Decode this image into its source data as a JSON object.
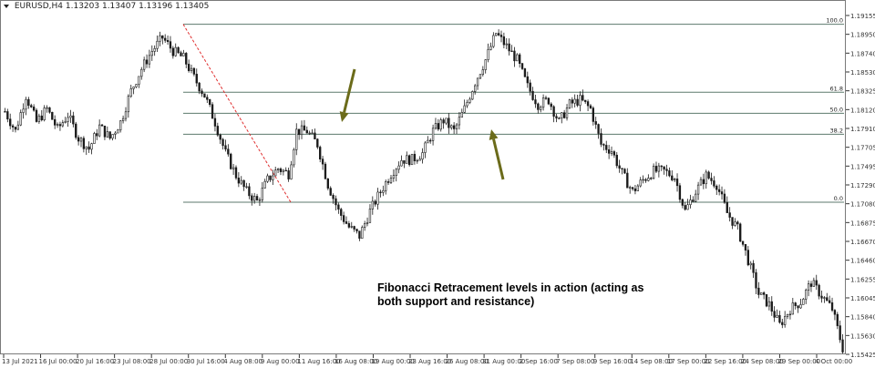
{
  "chart_data": {
    "type": "candlestick",
    "symbol": "EURUSD,H4",
    "ohlc_header": [
      "1.13203",
      "1.13407",
      "1.13196",
      "1.13405"
    ],
    "y_ticks": [
      "1.19155",
      "1.18950",
      "1.18740",
      "1.18530",
      "1.18325",
      "1.18120",
      "1.17910",
      "1.17705",
      "1.17495",
      "1.17290",
      "1.17080",
      "1.16875",
      "1.16670",
      "1.16460",
      "1.16255",
      "1.16045",
      "1.15840",
      "1.15630",
      "1.15425"
    ],
    "ylim": [
      1.1538,
      1.1925
    ],
    "x_ticks": [
      "13 Jul 2021",
      "16 Jul 00:00",
      "20 Jul 16:00",
      "23 Jul 08:00",
      "28 Jul 00:00",
      "30 Jul 16:00",
      "4 Aug 08:00",
      "9 Aug 00:00",
      "11 Aug 16:00",
      "16 Aug 08:00",
      "19 Aug 00:00",
      "23 Aug 16:00",
      "26 Aug 08:00",
      "31 Aug 00:00",
      "2 Sep 16:00",
      "7 Sep 08:00",
      "9 Sep 16:00",
      "14 Sep 08:00",
      "17 Sep 00:00",
      "22 Sep 16:00",
      "24 Sep 08:00",
      "29 Sep 00:00",
      "4 Oct 00:00"
    ],
    "fibonacci": {
      "swing_high": 1.191,
      "swing_low": 1.171,
      "levels": [
        {
          "label": "100.0",
          "price": 1.191
        },
        {
          "label": "61.8",
          "price": 1.18336
        },
        {
          "label": "50.0",
          "price": 1.181
        },
        {
          "label": "38.2",
          "price": 1.17864
        },
        {
          "label": "0.0",
          "price": 1.171
        }
      ]
    },
    "close_path": [
      [
        0,
        1.1812
      ],
      [
        4,
        1.179
      ],
      [
        8,
        1.183
      ],
      [
        12,
        1.18
      ],
      [
        16,
        1.1815
      ],
      [
        20,
        1.1792
      ],
      [
        24,
        1.1808
      ],
      [
        28,
        1.1782
      ],
      [
        32,
        1.177
      ],
      [
        36,
        1.1795
      ],
      [
        40,
        1.1782
      ],
      [
        44,
        1.18
      ],
      [
        48,
        1.1835
      ],
      [
        52,
        1.186
      ],
      [
        56,
        1.188
      ],
      [
        60,
        1.1895
      ],
      [
        64,
        1.188
      ],
      [
        68,
        1.1872
      ],
      [
        72,
        1.185
      ],
      [
        76,
        1.183
      ],
      [
        80,
        1.18
      ],
      [
        84,
        1.1765
      ],
      [
        88,
        1.174
      ],
      [
        92,
        1.1722
      ],
      [
        96,
        1.1711
      ],
      [
        100,
        1.1735
      ],
      [
        104,
        1.1748
      ],
      [
        108,
        1.1742
      ],
      [
        111,
        1.179
      ],
      [
        115,
        1.179
      ],
      [
        119,
        1.1775
      ],
      [
        123,
        1.173
      ],
      [
        127,
        1.17
      ],
      [
        131,
        1.1682
      ],
      [
        135,
        1.1672
      ],
      [
        139,
        1.17
      ],
      [
        143,
        1.1722
      ],
      [
        147,
        1.1742
      ],
      [
        151,
        1.1758
      ],
      [
        155,
        1.1758
      ],
      [
        159,
        1.1765
      ],
      [
        163,
        1.179
      ],
      [
        167,
        1.1802
      ],
      [
        171,
        1.179
      ],
      [
        175,
        1.1815
      ],
      [
        179,
        1.1845
      ],
      [
        183,
        1.187
      ],
      [
        187,
        1.19
      ],
      [
        191,
        1.1885
      ],
      [
        195,
        1.187
      ],
      [
        199,
        1.184
      ],
      [
        203,
        1.182
      ],
      [
        207,
        1.1825
      ],
      [
        211,
        1.18
      ],
      [
        215,
        1.182
      ],
      [
        219,
        1.1825
      ],
      [
        223,
        1.1815
      ],
      [
        227,
        1.1775
      ],
      [
        231,
        1.1768
      ],
      [
        235,
        1.1742
      ],
      [
        239,
        1.1722
      ],
      [
        243,
        1.1735
      ],
      [
        247,
        1.1745
      ],
      [
        251,
        1.1745
      ],
      [
        255,
        1.1738
      ],
      [
        259,
        1.17
      ],
      [
        263,
        1.1722
      ],
      [
        267,
        1.174
      ],
      [
        271,
        1.173
      ],
      [
        275,
        1.1698
      ],
      [
        279,
        1.168
      ],
      [
        283,
        1.1645
      ],
      [
        287,
        1.1607
      ],
      [
        291,
        1.1595
      ],
      [
        295,
        1.1572
      ],
      [
        299,
        1.159
      ],
      [
        303,
        1.1598
      ],
      [
        307,
        1.162
      ],
      [
        311,
        1.1605
      ],
      [
        315,
        1.159
      ],
      [
        319,
        1.1546
      ]
    ],
    "annotations": [
      {
        "text": "Fibonacci Retracement levels in action (acting as both support and resistance)"
      }
    ],
    "colors": {
      "candles": "#1a1a1a",
      "fib_lines": "#5d7a6d",
      "fib_trend": "#e03030",
      "arrows": "#6b6b1a",
      "grid_text": "#333333"
    }
  }
}
